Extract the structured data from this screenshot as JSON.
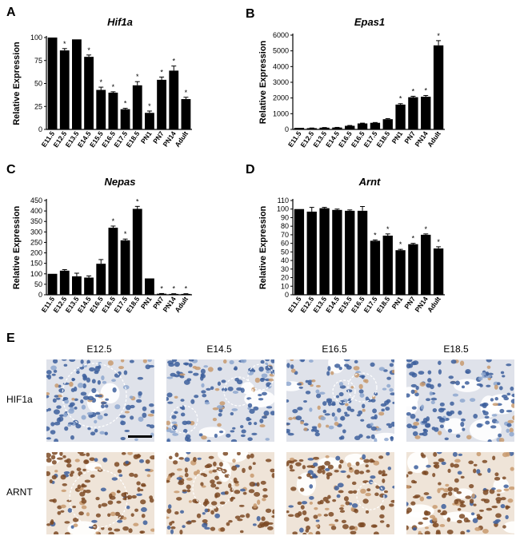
{
  "panels": {
    "A": "A",
    "B": "B",
    "C": "C",
    "D": "D",
    "E": "E"
  },
  "chart_data": [
    {
      "type": "bar",
      "title": "Hif1a",
      "ylabel": "Relative Expression",
      "ylim": [
        0,
        100
      ],
      "yticks": [
        0,
        25,
        50,
        75,
        100
      ],
      "categories": [
        "E11.5",
        "E12.5",
        "E13.5",
        "E14.5",
        "E15.5",
        "E16.5",
        "E17.5",
        "E18.5",
        "PN1",
        "PN7",
        "PN14",
        "Adult"
      ],
      "values": [
        100,
        86,
        98,
        79,
        43,
        40,
        22,
        48,
        18,
        54,
        64,
        33
      ],
      "errors": [
        0,
        2,
        0,
        2,
        3,
        1,
        1,
        4,
        2,
        3,
        5,
        2
      ],
      "significant": [
        false,
        true,
        false,
        true,
        true,
        true,
        true,
        true,
        true,
        true,
        true,
        true
      ],
      "marker": "*",
      "grid": false
    },
    {
      "type": "bar",
      "title": "Epas1",
      "ylabel": "Relative Expression",
      "ylim": [
        0,
        6000
      ],
      "yticks": [
        0,
        1000,
        2000,
        3000,
        4000,
        5000,
        6000
      ],
      "categories": [
        "E11.5",
        "E12.5",
        "E13.5",
        "E14.5",
        "E16.5",
        "E16.5",
        "E17.5",
        "E18.5",
        "PN1",
        "PN7",
        "PN14",
        "Adult"
      ],
      "values": [
        100,
        80,
        110,
        120,
        230,
        380,
        420,
        650,
        1580,
        2050,
        2080,
        5350
      ],
      "errors": [
        0,
        10,
        10,
        10,
        20,
        20,
        20,
        40,
        60,
        60,
        80,
        300
      ],
      "significant": [
        false,
        false,
        false,
        false,
        false,
        false,
        false,
        false,
        true,
        true,
        true,
        true
      ],
      "marker": "*",
      "grid": false
    },
    {
      "type": "bar",
      "title": "Nepas",
      "ylabel": "Relative Expression",
      "ylim": [
        0,
        450
      ],
      "yticks": [
        0,
        50,
        100,
        150,
        200,
        250,
        300,
        350,
        400,
        450
      ],
      "categories": [
        "E11.5",
        "E12.5",
        "E13.5",
        "E14.5",
        "E16.5",
        "E16.5",
        "E17.5",
        "E18.5",
        "PN1",
        "PN7",
        "PN14",
        "Adult"
      ],
      "values": [
        100,
        115,
        88,
        82,
        148,
        320,
        260,
        410,
        78,
        5,
        4,
        4
      ],
      "errors": [
        0,
        5,
        15,
        8,
        20,
        8,
        6,
        12,
        0,
        1,
        1,
        1
      ],
      "significant": [
        false,
        false,
        false,
        false,
        false,
        true,
        true,
        true,
        false,
        true,
        true,
        true
      ],
      "marker": "*",
      "grid": false
    },
    {
      "type": "bar",
      "title": "Arnt",
      "ylabel": "Relative Expression",
      "ylim": [
        0,
        110
      ],
      "yticks": [
        0,
        10,
        20,
        30,
        40,
        50,
        60,
        70,
        80,
        90,
        100,
        110
      ],
      "categories": [
        "E11.5",
        "E12.5",
        "E13.5",
        "E14.5",
        "E15.5",
        "E16.5",
        "E17.5",
        "E18.5",
        "PN1",
        "PN7",
        "PN14",
        "Adult"
      ],
      "values": [
        100,
        97,
        101,
        99,
        98,
        98,
        63,
        69,
        52,
        59,
        70,
        54
      ],
      "errors": [
        0,
        5,
        1,
        1,
        1,
        5,
        1,
        2,
        1,
        1,
        1,
        2
      ],
      "significant": [
        false,
        false,
        false,
        false,
        false,
        false,
        true,
        true,
        true,
        true,
        true,
        true
      ],
      "marker": "*",
      "grid": false
    }
  ],
  "histology": {
    "columns": [
      "E12.5",
      "E14.5",
      "E16.5",
      "E18.5"
    ],
    "rows": [
      "HIF1a",
      "ARNT"
    ],
    "colors": {
      "blue": "#3d5f9c",
      "blue_light": "#8ea7cf",
      "brown": "#7c4a24",
      "brown_light": "#c89a6e",
      "bg": "#f4f0ea"
    }
  }
}
